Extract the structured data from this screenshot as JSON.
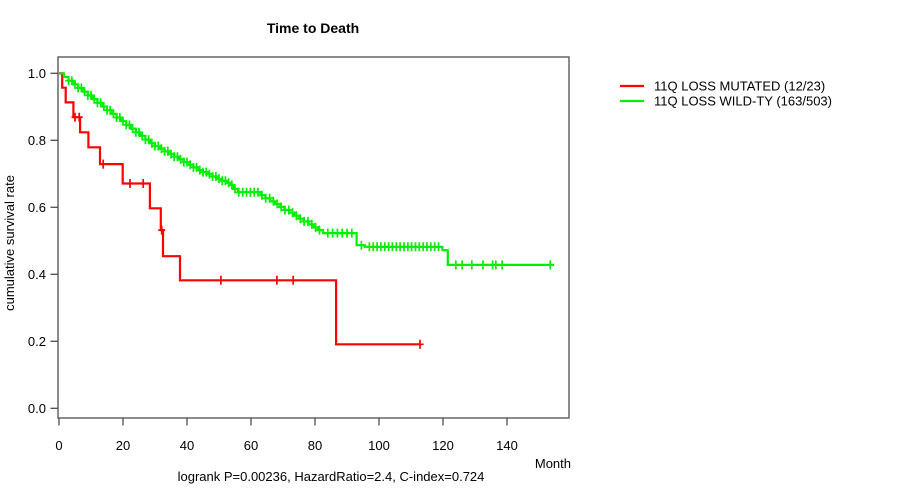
{
  "chart_data": {
    "type": "line",
    "subtype": "kaplan-meier-step-curves",
    "title": "Time to Death",
    "xlabel": "Month",
    "ylabel": "cumulative survival rate",
    "annotation": "logrank P=0.00236, HazardRatio=2.4, C-index=0.724",
    "xlim": [
      0,
      160
    ],
    "ylim": [
      0.0,
      1.0
    ],
    "x_ticks": [
      0,
      20,
      40,
      60,
      80,
      100,
      120,
      140
    ],
    "y_ticks": [
      "1.0",
      "0.8",
      "0.6",
      "0.4",
      "0.2",
      "0.0"
    ],
    "grid": false,
    "legend_position": "right-outside",
    "frame_color": "#4d4d4d",
    "series": [
      {
        "name": "11Q LOSS MUTATED (12/23)",
        "color": "#ff0000",
        "end_month": 112.8,
        "steps": [
          [
            0,
            1.0
          ],
          [
            1,
            0.957
          ],
          [
            2.1,
            0.913
          ],
          [
            4.5,
            0.869
          ],
          [
            6.6,
            0.824
          ],
          [
            9.2,
            0.779
          ],
          [
            12.8,
            0.729
          ],
          [
            19.9,
            0.671
          ],
          [
            28.4,
            0.597
          ],
          [
            31.8,
            0.532
          ],
          [
            32.5,
            0.454
          ],
          [
            37.8,
            0.382
          ],
          [
            86.6,
            0.191
          ]
        ],
        "censor_months": [
          5.0,
          6.3,
          13.8,
          22.2,
          26.3,
          32.1,
          50.6,
          68.1,
          73.2,
          112.8
        ]
      },
      {
        "name": "11Q LOSS WILD-TY (163/503)",
        "color": "#00ee00",
        "end_month": 154.7,
        "steps": [
          [
            0,
            1.0
          ],
          [
            1.5,
            0.989
          ],
          [
            3,
            0.978
          ],
          [
            4.5,
            0.967
          ],
          [
            6,
            0.956
          ],
          [
            7.5,
            0.945
          ],
          [
            9,
            0.934
          ],
          [
            10.5,
            0.923
          ],
          [
            12,
            0.912
          ],
          [
            13.5,
            0.901
          ],
          [
            15,
            0.89
          ],
          [
            16.5,
            0.879
          ],
          [
            18,
            0.868
          ],
          [
            19.5,
            0.857
          ],
          [
            21,
            0.846
          ],
          [
            22.5,
            0.835
          ],
          [
            24,
            0.824
          ],
          [
            25.5,
            0.813
          ],
          [
            27,
            0.802
          ],
          [
            28.5,
            0.791
          ],
          [
            30,
            0.783
          ],
          [
            31.5,
            0.775
          ],
          [
            33,
            0.767
          ],
          [
            34.5,
            0.759
          ],
          [
            36,
            0.751
          ],
          [
            37.5,
            0.743
          ],
          [
            39,
            0.735
          ],
          [
            40.5,
            0.727
          ],
          [
            42,
            0.719
          ],
          [
            43.5,
            0.711
          ],
          [
            45,
            0.705
          ],
          [
            46.5,
            0.699
          ],
          [
            48,
            0.692
          ],
          [
            49.5,
            0.685
          ],
          [
            51,
            0.679
          ],
          [
            52.5,
            0.673
          ],
          [
            53.4,
            0.667
          ],
          [
            54.5,
            0.655
          ],
          [
            56,
            0.645
          ],
          [
            63,
            0.636
          ],
          [
            64.5,
            0.627
          ],
          [
            66,
            0.618
          ],
          [
            67.5,
            0.61
          ],
          [
            69,
            0.601
          ],
          [
            70.5,
            0.592
          ],
          [
            72,
            0.584
          ],
          [
            73.5,
            0.575
          ],
          [
            75,
            0.566
          ],
          [
            76.5,
            0.558
          ],
          [
            78,
            0.549
          ],
          [
            79.5,
            0.54
          ],
          [
            81,
            0.532
          ],
          [
            82.5,
            0.523
          ],
          [
            93,
            0.487
          ],
          [
            95.6,
            0.482
          ],
          [
            119.8,
            0.472
          ],
          [
            121.5,
            0.428
          ]
        ],
        "censor_months": [
          3,
          4,
          5,
          6,
          7,
          8,
          9,
          10,
          11,
          12,
          13,
          14,
          15,
          16,
          17,
          18,
          19,
          20,
          21,
          22,
          23,
          24,
          25,
          26,
          27,
          28,
          29,
          30,
          31,
          32,
          33,
          34,
          35,
          36,
          37,
          38,
          39,
          40,
          41,
          42,
          43,
          44,
          45,
          46,
          47,
          48,
          49,
          50,
          51,
          52,
          53,
          54,
          55,
          56.2,
          57.4,
          58.6,
          59.8,
          61,
          62.2,
          63.4,
          64.6,
          65.8,
          67,
          68.2,
          69.4,
          70.6,
          71.8,
          73,
          74.2,
          75.4,
          76.6,
          77.8,
          79,
          80.2,
          81.4,
          84,
          85.5,
          87,
          88.5,
          90,
          91.5,
          94.5,
          97,
          98.2,
          99.4,
          100.6,
          101.8,
          103,
          104.2,
          105.4,
          106.6,
          107.8,
          109,
          110.2,
          111.4,
          112.6,
          113.8,
          115,
          116.2,
          117.4,
          118.6,
          124,
          126,
          129,
          132.5,
          135.5,
          136.5,
          138.5,
          153.5
        ]
      }
    ]
  }
}
